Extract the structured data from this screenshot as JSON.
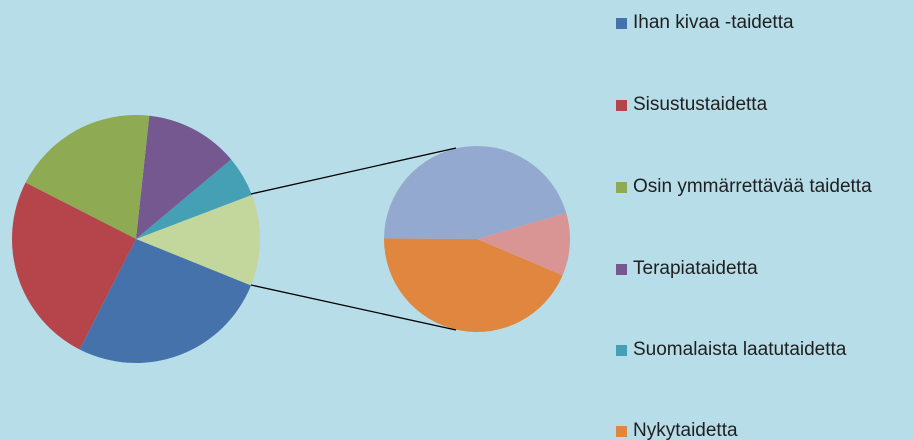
{
  "chart_data": {
    "type": "pie-of-pie",
    "categories": [
      "Ihan kivaa -taidetta",
      "Sisustustaidetta",
      "Osin ymmärrettävää taidetta",
      "Terapiataidetta",
      "Suomalaista laatutaidetta",
      "Nykytaidetta",
      null,
      null
    ],
    "values": [
      26.4,
      25,
      19.2,
      12.2,
      5.3,
      5.2,
      5.4,
      1.3
    ],
    "colors": [
      "#4672ab",
      "#b5454a",
      "#8eaa52",
      "#74588f",
      "#45a0b5",
      "#e0863f",
      "#93a9cf",
      "#d99594"
    ],
    "other_color": "#c3d69b",
    "secondary_count": 3
  }
}
